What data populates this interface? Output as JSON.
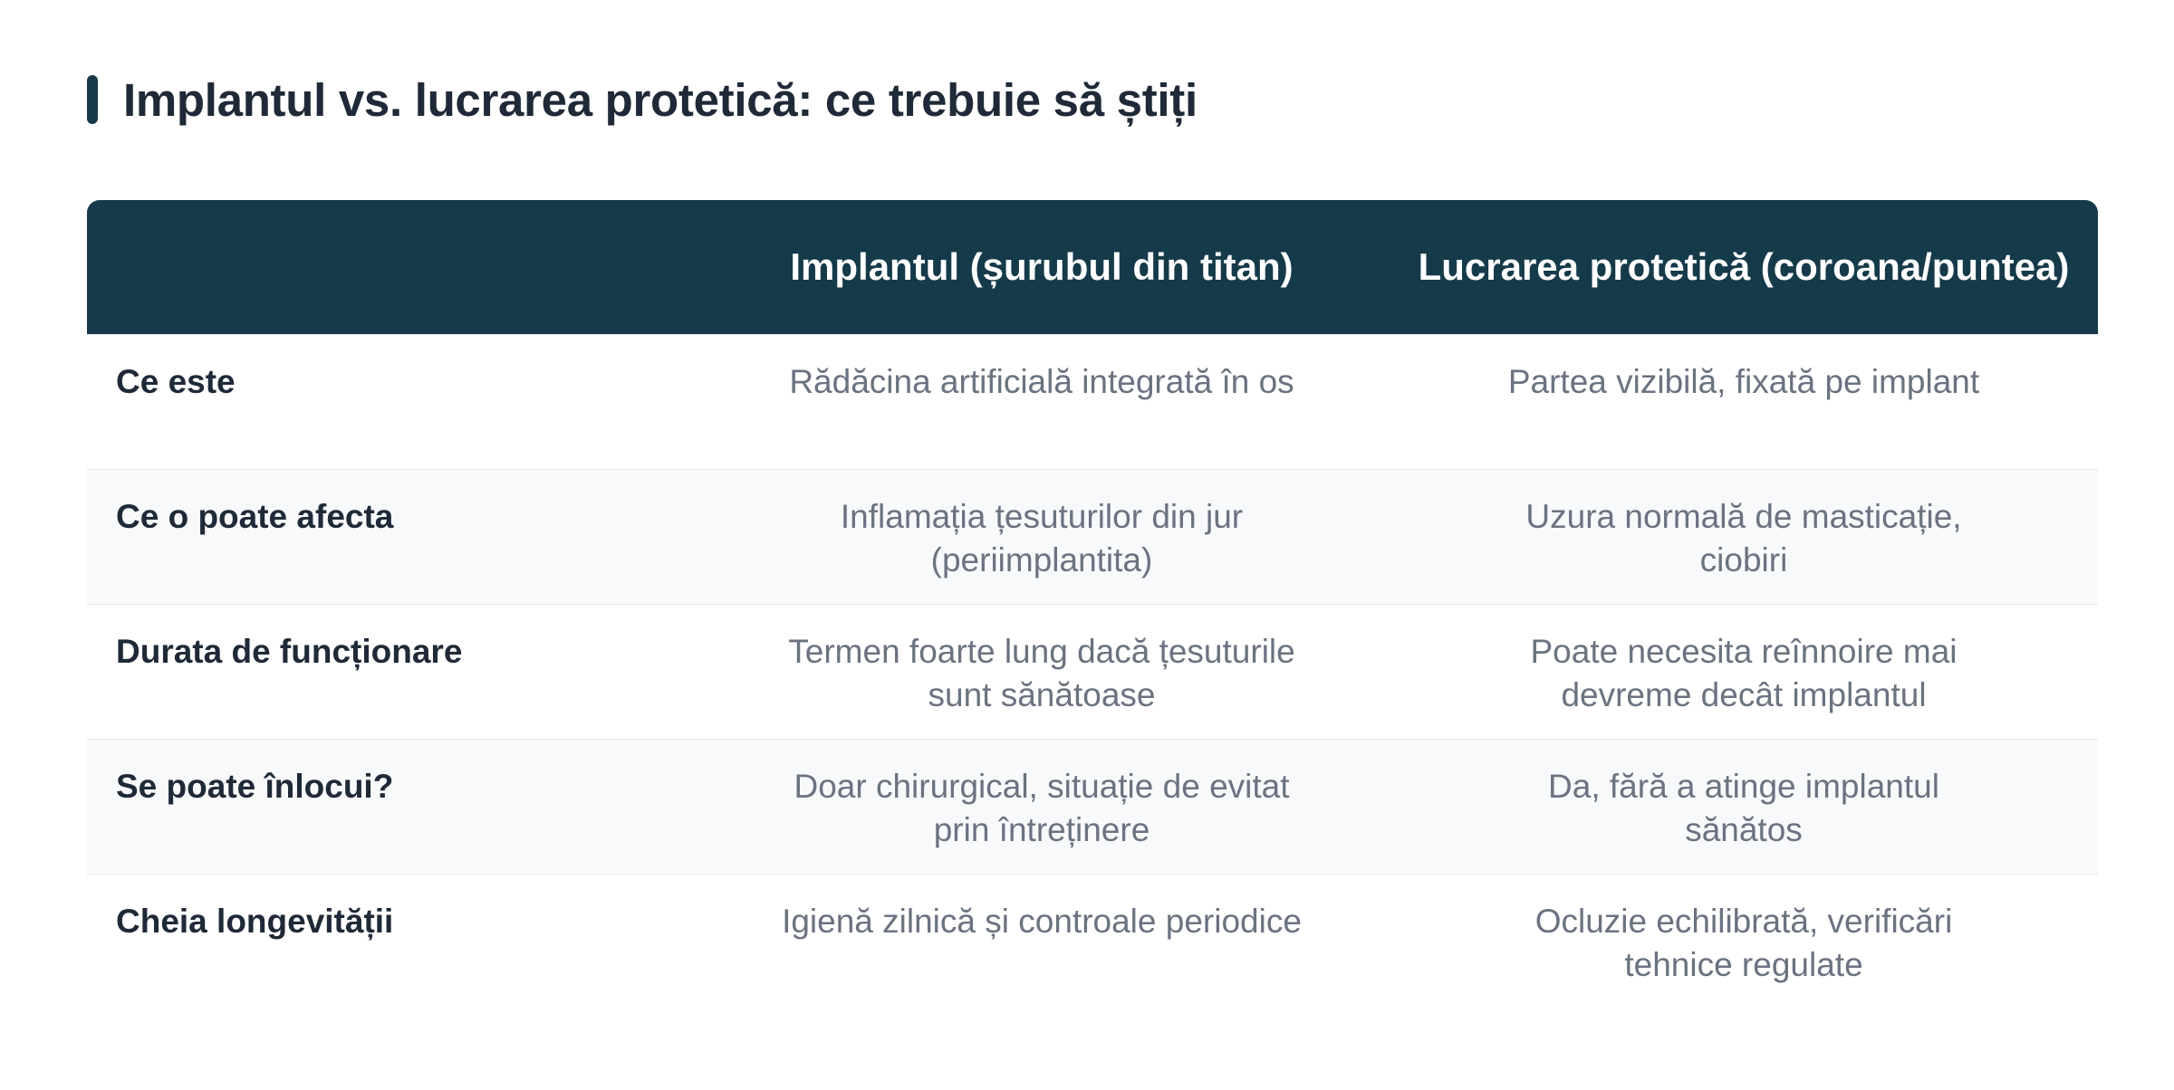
{
  "title": "Implantul vs. lucrarea protetică: ce trebuie să știți",
  "colors": {
    "accent": "#153a4a",
    "heading_text": "#1f2937",
    "cell_text": "#6b7280",
    "alt_row_bg": "#f8f9fb",
    "divider": "#e5e7eb"
  },
  "table": {
    "headers": [
      "",
      "Implantul (șurubul din titan)",
      "Lucrarea protetică (coroana/puntea)"
    ],
    "rows": [
      {
        "label": "Ce este",
        "implant": "Rădăcina artificială integrată în os",
        "prosthesis": "Partea vizibilă, fixată pe implant"
      },
      {
        "label": "Ce o poate afecta",
        "implant": "Inflamația țesuturilor din jur (periimplantita)",
        "prosthesis": "Uzura normală de masticație, ciobiri"
      },
      {
        "label": "Durata de funcționare",
        "implant": "Termen foarte lung dacă țesuturile sunt sănătoase",
        "prosthesis": "Poate necesita reînnoire mai devreme decât implantul"
      },
      {
        "label": "Se poate înlocui?",
        "implant": "Doar chirurgical, situație de evitat prin întreținere",
        "prosthesis": "Da, fără a atinge implantul sănătos"
      },
      {
        "label": "Cheia longevității",
        "implant": "Igienă zilnică și controale periodice",
        "prosthesis": "Ocluzie echilibrată, verificări tehnice regulate"
      }
    ]
  }
}
